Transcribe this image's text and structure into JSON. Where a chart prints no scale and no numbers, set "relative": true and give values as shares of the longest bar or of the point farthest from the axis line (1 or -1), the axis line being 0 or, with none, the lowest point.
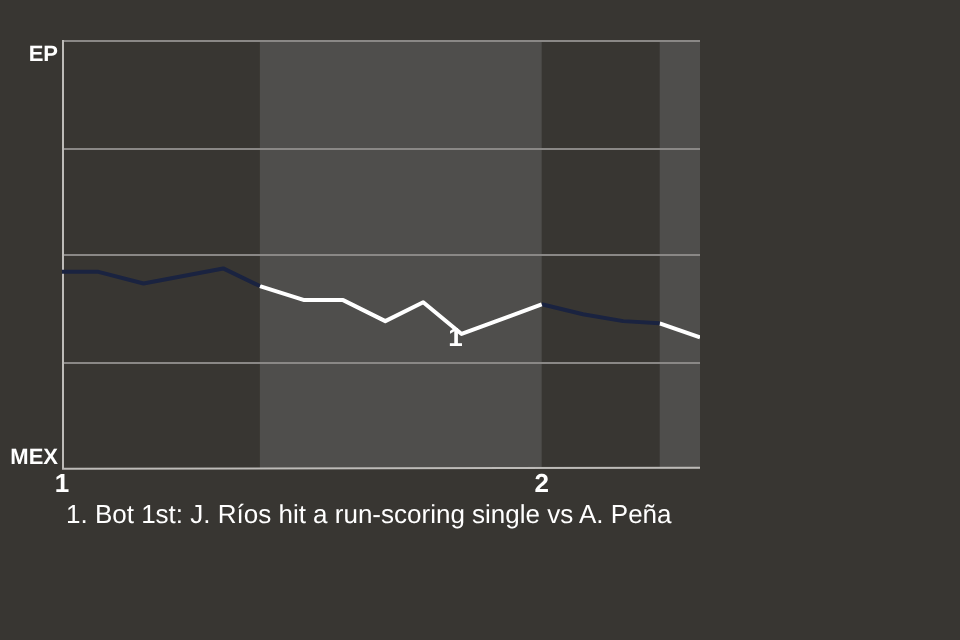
{
  "chart_data": {
    "type": "line",
    "relative": true,
    "xlim": [
      1,
      2.33
    ],
    "xticks": [
      1,
      2
    ],
    "marker": "none",
    "ref_lines": [
      {
        "axis": "y",
        "value": 0.535,
        "color": "#8a8886"
      },
      {
        "axis": "y",
        "value": 1.07,
        "color": "#8a8886"
      },
      {
        "axis": "y",
        "value": 1.605,
        "color": "#8a8886"
      },
      {
        "axis": "y",
        "value": 2.14,
        "color": "#8a8886"
      }
    ],
    "bands": [
      {
        "axis": "x",
        "from": 1.4125,
        "to": 2.0,
        "color": "#4f4e4c"
      },
      {
        "axis": "x",
        "from": 2.246,
        "to": 2.33,
        "color": "#4f4e4c"
      }
    ],
    "series": [
      {
        "color": "#1a2340",
        "x": [
          1.0,
          1.076,
          1.17,
          1.336,
          1.4125
        ],
        "values": [
          0.983,
          0.983,
          0.925,
          1,
          0.912
        ]
      },
      {
        "color": "#ffffff",
        "x": [
          1.4125,
          1.505,
          1.586,
          1.674,
          1.753,
          1.833,
          2.0
        ],
        "values": [
          0.912,
          0.842,
          0.842,
          0.737,
          0.831,
          0.673,
          0.821
        ]
      },
      {
        "color": "#1a2340",
        "x": [
          2.0,
          2.086,
          2.17,
          2.246
        ],
        "values": [
          0.821,
          0.771,
          0.737,
          0.726
        ]
      },
      {
        "color": "#ffffff",
        "x": [
          2.246,
          2.33
        ],
        "values": [
          0.726,
          0.656
        ]
      }
    ],
    "annotations": [
      "EP",
      "MEX",
      {
        "text": "1",
        "x": 1.833,
        "y": 0.673
      },
      "1. Bot 1st: J. Ríos hit a run-scoring single vs A. Peña"
    ]
  }
}
